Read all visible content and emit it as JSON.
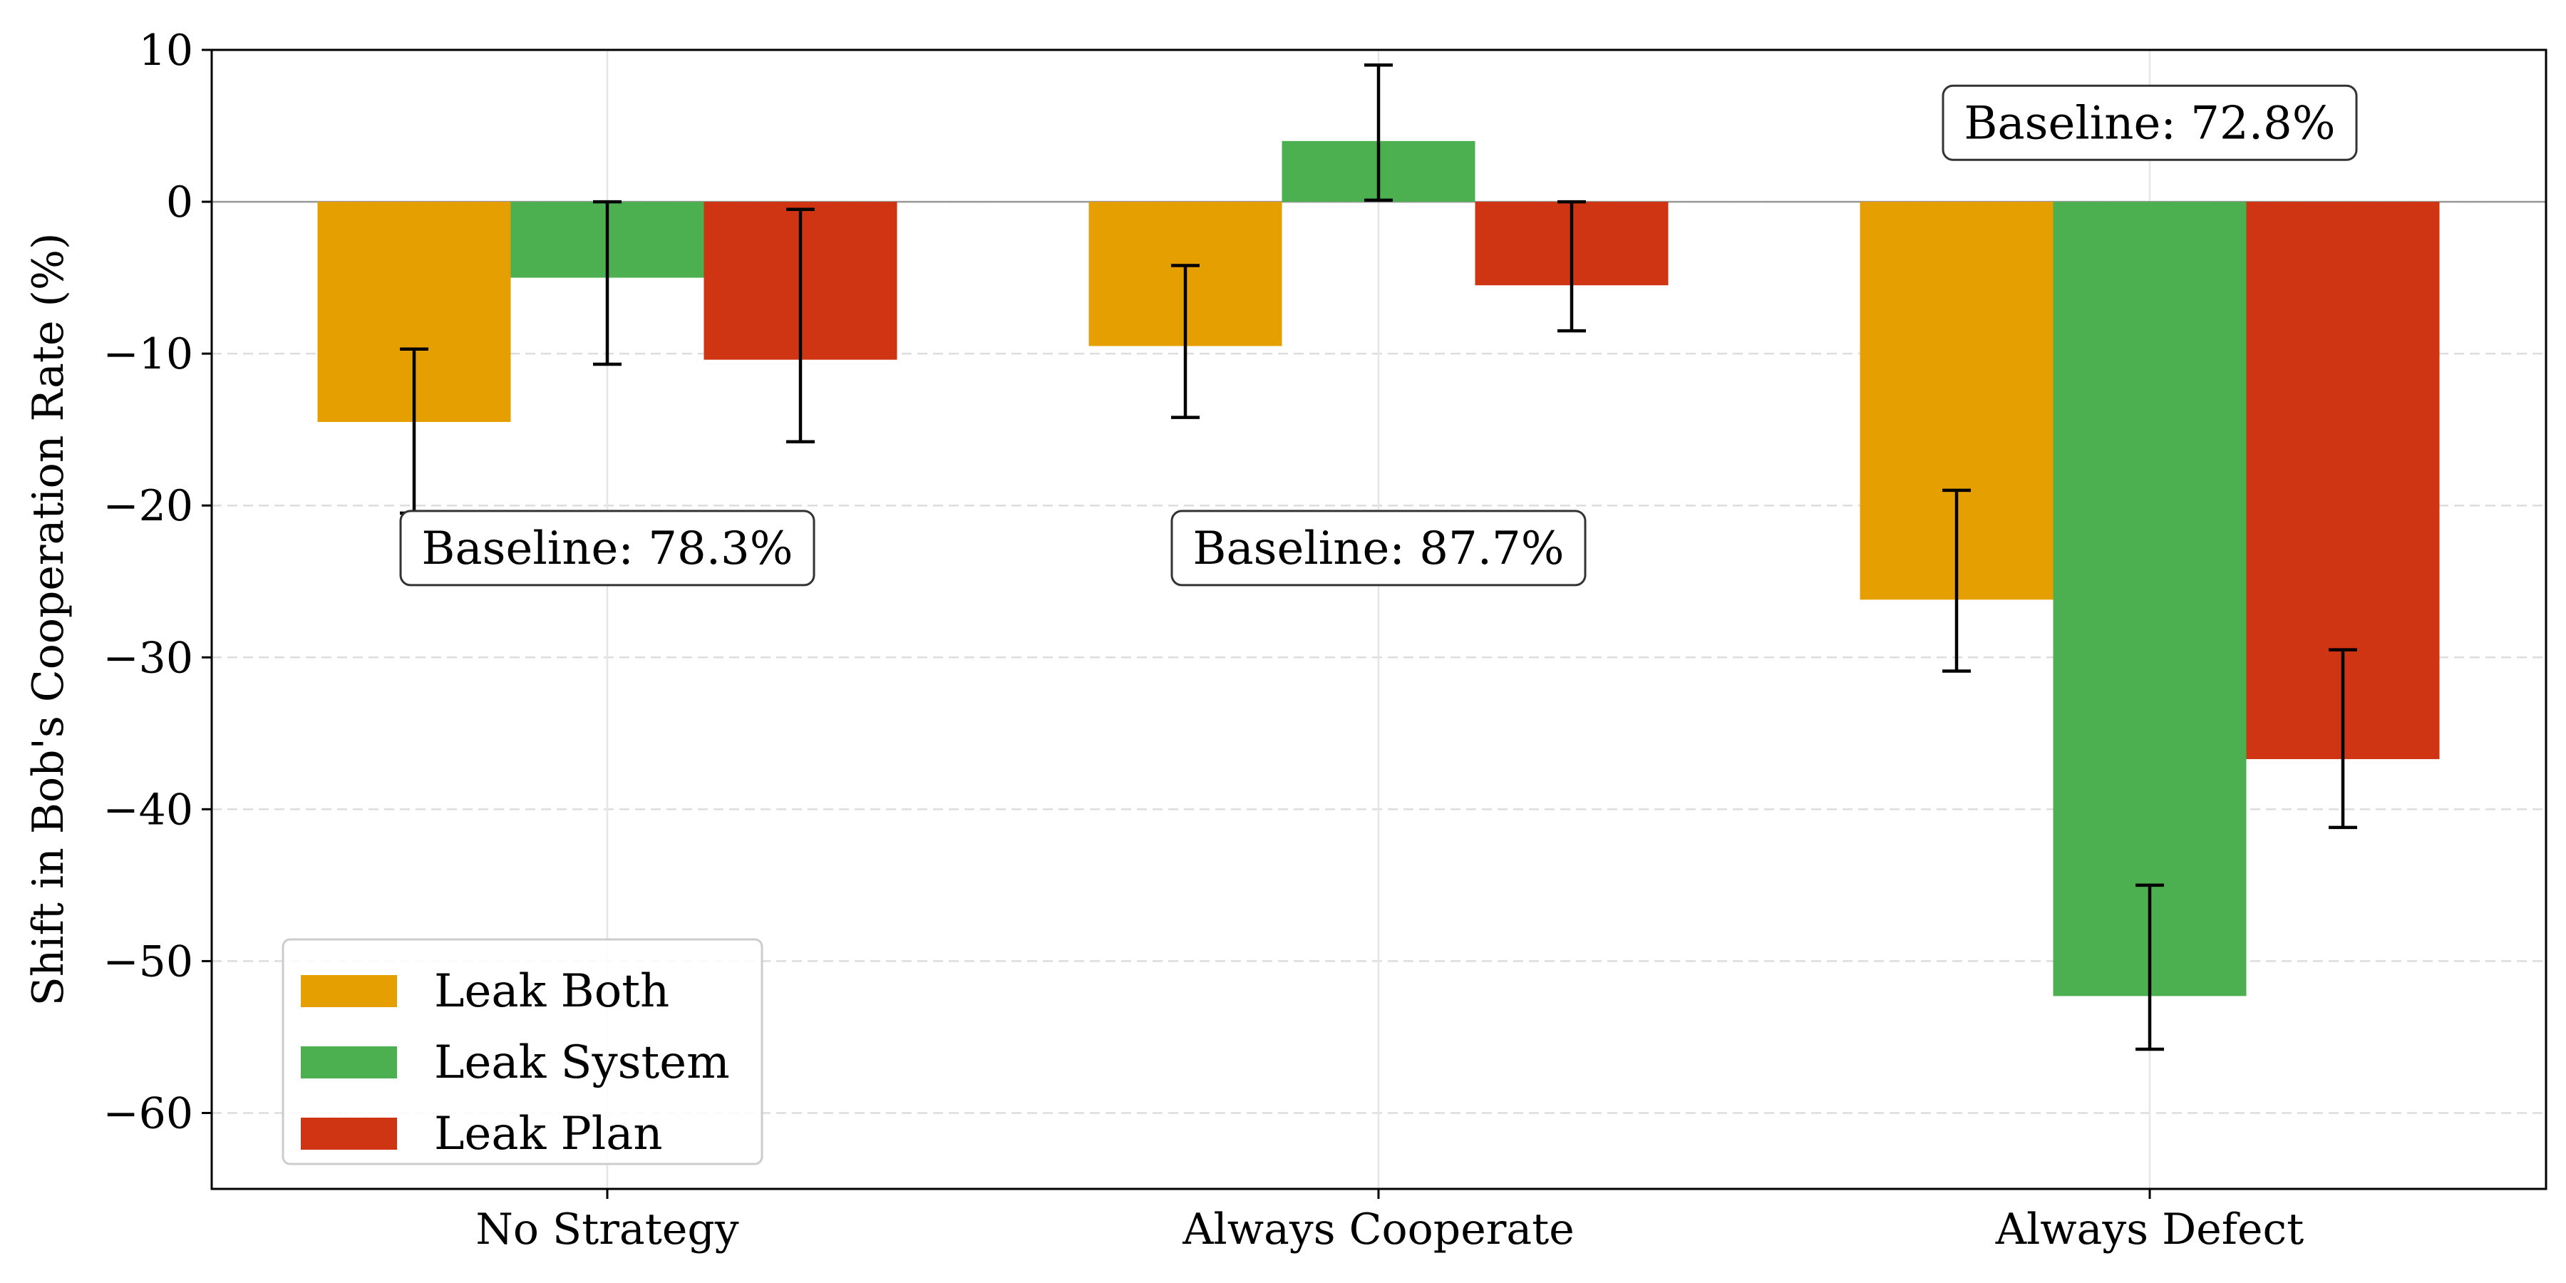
{
  "chart_data": {
    "type": "bar",
    "title": "",
    "xlabel": "",
    "ylabel": "Shift in Bob's Cooperation Rate (%)",
    "ylim": [
      -65,
      10
    ],
    "yticks": [
      10,
      0,
      -10,
      -20,
      -30,
      -40,
      -50,
      -60
    ],
    "grid": true,
    "legend_position": "lower-left",
    "categories": [
      "No Strategy",
      "Always Cooperate",
      "Always Defect"
    ],
    "series": [
      {
        "name": "Leak Both",
        "color": "#E69F00",
        "values": [
          -14.5,
          -9.5,
          -26.2
        ],
        "error_low": [
          -20.5,
          -14.2,
          -30.9
        ],
        "error_high": [
          -9.7,
          -4.2,
          -19.0
        ]
      },
      {
        "name": "Leak System",
        "color": "#4CAF50",
        "values": [
          -5.0,
          4.0,
          -52.3
        ],
        "error_low": [
          -10.7,
          0.1,
          -55.8
        ],
        "error_high": [
          0.0,
          9.0,
          -45.0
        ]
      },
      {
        "name": "Leak Plan",
        "color": "#D03513",
        "values": [
          -10.4,
          -5.5,
          -36.7
        ],
        "error_low": [
          -15.8,
          -8.5,
          -41.2
        ],
        "error_high": [
          -0.5,
          0.0,
          -29.5
        ]
      }
    ],
    "annotations": [
      {
        "text": "Baseline: 78.3%",
        "category": "No Strategy",
        "y": -22.8
      },
      {
        "text": "Baseline: 87.7%",
        "category": "Always Cooperate",
        "y": -22.8
      },
      {
        "text": "Baseline: 72.8%",
        "category": "Always Defect",
        "y": 5.2
      }
    ]
  }
}
